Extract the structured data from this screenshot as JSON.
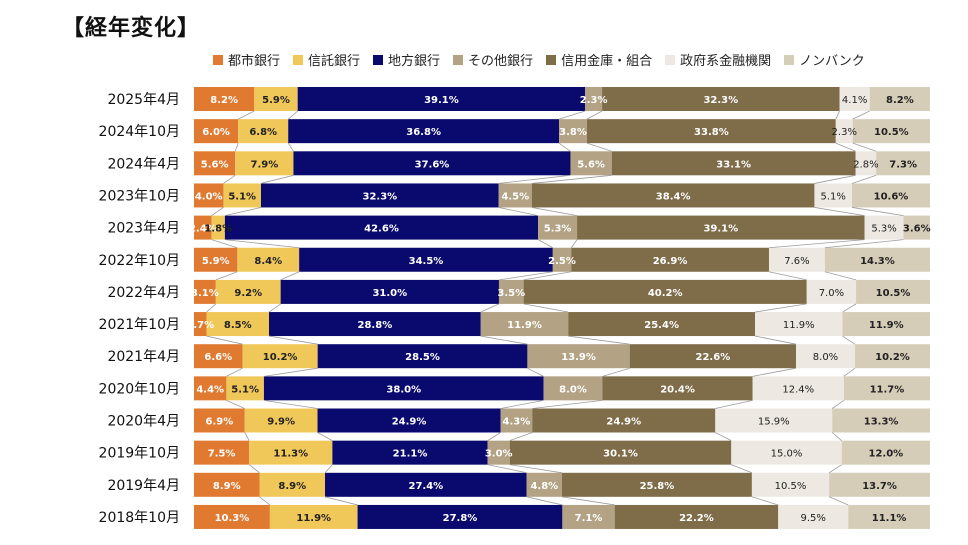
{
  "title": "【経年変化】",
  "chart_data": {
    "type": "bar",
    "stacked": true,
    "orientation": "horizontal",
    "percent": true,
    "categories": [
      "2025年4月",
      "2024年10月",
      "2024年4月",
      "2023年10月",
      "2023年4月",
      "2022年10月",
      "2022年4月",
      "2021年10月",
      "2021年4月",
      "2020年10月",
      "2020年4月",
      "2019年10月",
      "2019年4月",
      "2018年10月"
    ],
    "series": [
      {
        "name": "都市銀行",
        "color": "#e07a30",
        "values": [
          8.2,
          6.0,
          5.6,
          4.0,
          2.4,
          5.9,
          3.1,
          1.7,
          6.6,
          4.4,
          6.9,
          7.5,
          8.9,
          10.3
        ],
        "labels": [
          "8.2%",
          "6.0%",
          "5.6%",
          "4.0%",
          "2.4%",
          "5.9%",
          "3.1%",
          "1.7%",
          "6.6%",
          "4.4%",
          "6.9%",
          "7.5%",
          "8.9%",
          "10.3%"
        ]
      },
      {
        "name": "信託銀行",
        "color": "#f0c85a",
        "values": [
          5.9,
          6.8,
          7.9,
          5.1,
          1.8,
          8.4,
          9.2,
          8.5,
          10.2,
          5.1,
          9.9,
          11.3,
          8.9,
          11.9
        ],
        "labels": [
          "5.9%",
          "6.8%",
          "7.9%",
          "5.1%",
          "1.8%",
          "8.4%",
          "9.2%",
          "8.5%",
          "10.2%",
          "5.1%",
          "9.9%",
          "11.3%",
          "8.9%",
          "11.9%"
        ]
      },
      {
        "name": "地方銀行",
        "color": "#0a0a6e",
        "values": [
          39.1,
          36.8,
          37.6,
          32.3,
          42.6,
          34.5,
          31.0,
          28.8,
          28.5,
          38.0,
          24.9,
          21.1,
          27.4,
          27.8
        ],
        "labels": [
          "39.1%",
          "36.8%",
          "37.6%",
          "32.3%",
          "42.6%",
          "34.5%",
          "31.0%",
          "28.8%",
          "28.5%",
          "38.0%",
          "24.9%",
          "21.1%",
          "27.4%",
          "27.8%"
        ]
      },
      {
        "name": "その他銀行",
        "color": "#b3a283",
        "values": [
          2.3,
          3.8,
          5.6,
          4.5,
          5.3,
          2.5,
          3.5,
          11.9,
          13.9,
          8.0,
          4.3,
          3.0,
          4.8,
          7.1
        ],
        "labels": [
          "2.3%",
          "3.8%",
          "5.6%",
          "4.5%",
          "5.3%",
          "2.5%",
          "3.5%",
          "11.9%",
          "13.9%",
          "8.0%",
          "4.3%",
          "3.0%",
          "4.8%",
          "7.1%"
        ]
      },
      {
        "name": "信用金庫・組合",
        "color": "#7f6c48",
        "values": [
          32.3,
          33.8,
          33.1,
          38.4,
          39.1,
          26.9,
          40.2,
          25.4,
          22.6,
          20.4,
          24.9,
          30.1,
          25.8,
          22.2
        ],
        "labels": [
          "32.3%",
          "33.8%",
          "33.1%",
          "38.4%",
          "39.1%",
          "26.9%",
          "40.2%",
          "25.4%",
          "22.6%",
          "20.4%",
          "24.9%",
          "30.1%",
          "25.8%",
          "22.2%"
        ]
      },
      {
        "name": "政府系金融機関",
        "color": "#ede9e2",
        "values": [
          4.1,
          2.3,
          2.8,
          5.1,
          5.3,
          7.6,
          7.0,
          11.9,
          8.0,
          12.4,
          15.9,
          15.0,
          10.5,
          9.5
        ],
        "labels": [
          "4.1%",
          "2.3%",
          "2.8%",
          "5.1%",
          "5.3%",
          "7.6%",
          "7.0%",
          "11.9%",
          "8.0%",
          "12.4%",
          "15.9%",
          "15.0%",
          "10.5%",
          "9.5%"
        ]
      },
      {
        "name": "ノンバンク",
        "color": "#d6cdb8",
        "values": [
          8.2,
          10.5,
          7.3,
          10.6,
          3.6,
          14.3,
          10.5,
          11.9,
          10.2,
          11.7,
          13.3,
          12.0,
          13.7,
          11.1
        ],
        "labels": [
          "8.2%",
          "10.5%",
          "7.3%",
          "10.6%",
          "3.6%",
          "14.3%",
          "10.5%",
          "11.9%",
          "10.2%",
          "11.7%",
          "13.3%",
          "12.0%",
          "13.7%",
          "11.1%"
        ]
      }
    ],
    "legend_position": "top",
    "connector_lines": true
  }
}
